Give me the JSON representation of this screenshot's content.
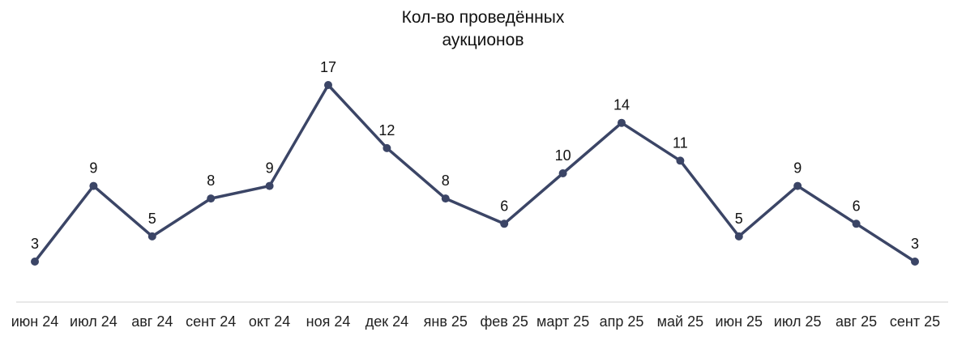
{
  "chart_data": {
    "type": "line",
    "title": "Кол-во проведённых\nаукционов",
    "categories": [
      "июн 24",
      "июл 24",
      "авг 24",
      "сент 24",
      "окт 24",
      "ноя 24",
      "дек 24",
      "янв 25",
      "фев 25",
      "март 25",
      "апр 25",
      "май 25",
      "июн 25",
      "июл 25",
      "авг 25",
      "сент 25"
    ],
    "series": [
      {
        "values": [
          3,
          9,
          5,
          8,
          9,
          17,
          12,
          8,
          6,
          10,
          14,
          11,
          5,
          9,
          6,
          3
        ],
        "color": "#3b4566"
      }
    ],
    "data_labels": true,
    "grid": false,
    "legend": "none",
    "axis_color": "#d0d0d0"
  }
}
